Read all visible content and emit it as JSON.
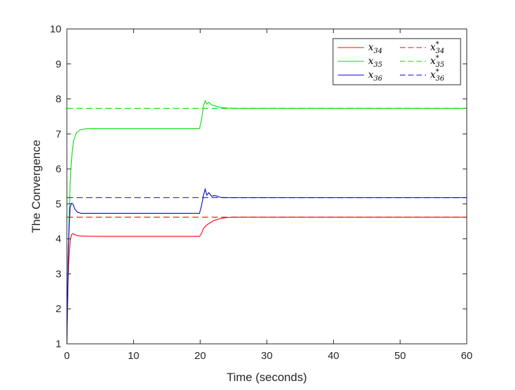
{
  "chart_data": {
    "type": "line",
    "title": "",
    "xlabel": "Time (seconds)",
    "ylabel": "The Convergence",
    "xlim": [
      0,
      60
    ],
    "ylim": [
      1,
      10
    ],
    "xticks": [
      "0",
      "10",
      "20",
      "30",
      "40",
      "50",
      "60"
    ],
    "yticks": [
      "1",
      "2",
      "3",
      "4",
      "5",
      "6",
      "7",
      "8",
      "9",
      "10"
    ],
    "grid": false,
    "legend": {
      "position": "top-right",
      "columns": 2
    },
    "series": [
      {
        "name": "x34",
        "label_base": "x",
        "label_sub": "34",
        "label_sup": "",
        "color": "#ff0000",
        "style": "solid",
        "points": [
          [
            0,
            1
          ],
          [
            0.1,
            2.0
          ],
          [
            0.2,
            2.9
          ],
          [
            0.35,
            3.6
          ],
          [
            0.5,
            3.95
          ],
          [
            0.7,
            4.12
          ],
          [
            0.9,
            4.15
          ],
          [
            1.2,
            4.12
          ],
          [
            1.6,
            4.09
          ],
          [
            2.2,
            4.08
          ],
          [
            5,
            4.07
          ],
          [
            10,
            4.07
          ],
          [
            15,
            4.07
          ],
          [
            19.9,
            4.07
          ],
          [
            20.2,
            4.15
          ],
          [
            20.5,
            4.3
          ],
          [
            21,
            4.4
          ],
          [
            22,
            4.52
          ],
          [
            23,
            4.58
          ],
          [
            24,
            4.61
          ],
          [
            25,
            4.62
          ],
          [
            30,
            4.62
          ],
          [
            40,
            4.62
          ],
          [
            50,
            4.62
          ],
          [
            60,
            4.62
          ]
        ]
      },
      {
        "name": "x35",
        "label_base": "x",
        "label_sub": "35",
        "label_sup": "",
        "color": "#00dd00",
        "style": "solid",
        "points": [
          [
            0,
            1
          ],
          [
            0.1,
            2.3
          ],
          [
            0.2,
            3.5
          ],
          [
            0.35,
            4.7
          ],
          [
            0.5,
            5.6
          ],
          [
            0.7,
            6.3
          ],
          [
            1.0,
            6.8
          ],
          [
            1.4,
            7.02
          ],
          [
            2.0,
            7.12
          ],
          [
            3.0,
            7.15
          ],
          [
            5,
            7.15
          ],
          [
            10,
            7.15
          ],
          [
            15,
            7.15
          ],
          [
            19.9,
            7.15
          ],
          [
            20.2,
            7.4
          ],
          [
            20.5,
            7.8
          ],
          [
            20.75,
            7.95
          ],
          [
            21,
            7.85
          ],
          [
            21.3,
            7.9
          ],
          [
            21.7,
            7.83
          ],
          [
            22.2,
            7.8
          ],
          [
            23,
            7.76
          ],
          [
            24,
            7.74
          ],
          [
            25,
            7.73
          ],
          [
            30,
            7.73
          ],
          [
            40,
            7.73
          ],
          [
            50,
            7.73
          ],
          [
            60,
            7.73
          ]
        ]
      },
      {
        "name": "x36",
        "label_base": "x",
        "label_sub": "36",
        "label_sup": "",
        "color": "#0000dd",
        "style": "solid",
        "points": [
          [
            0,
            1
          ],
          [
            0.1,
            2.3
          ],
          [
            0.2,
            3.5
          ],
          [
            0.35,
            4.4
          ],
          [
            0.5,
            4.9
          ],
          [
            0.7,
            5.02
          ],
          [
            0.9,
            5.0
          ],
          [
            1.2,
            4.85
          ],
          [
            1.6,
            4.76
          ],
          [
            2.2,
            4.73
          ],
          [
            5,
            4.73
          ],
          [
            10,
            4.73
          ],
          [
            15,
            4.73
          ],
          [
            19.9,
            4.73
          ],
          [
            20.2,
            4.95
          ],
          [
            20.5,
            5.25
          ],
          [
            20.75,
            5.42
          ],
          [
            21,
            5.25
          ],
          [
            21.3,
            5.32
          ],
          [
            21.7,
            5.22
          ],
          [
            22.2,
            5.24
          ],
          [
            23,
            5.19
          ],
          [
            24,
            5.18
          ],
          [
            25,
            5.18
          ],
          [
            30,
            5.18
          ],
          [
            40,
            5.18
          ],
          [
            50,
            5.18
          ],
          [
            60,
            5.18
          ]
        ]
      },
      {
        "name": "x34*",
        "label_base": "x",
        "label_sub": "34",
        "label_sup": "*",
        "color": "#ff0000",
        "style": "dashed",
        "points": [
          [
            0,
            4.62
          ],
          [
            60,
            4.62
          ]
        ]
      },
      {
        "name": "x35*",
        "label_base": "x",
        "label_sub": "35",
        "label_sup": "*",
        "color": "#00dd00",
        "style": "dashed",
        "points": [
          [
            0,
            7.73
          ],
          [
            60,
            7.73
          ]
        ]
      },
      {
        "name": "x36*",
        "label_base": "x",
        "label_sub": "36",
        "label_sup": "*",
        "color": "#0000dd",
        "style": "dashed",
        "points": [
          [
            0,
            5.18
          ],
          [
            60,
            5.18
          ]
        ]
      }
    ]
  }
}
